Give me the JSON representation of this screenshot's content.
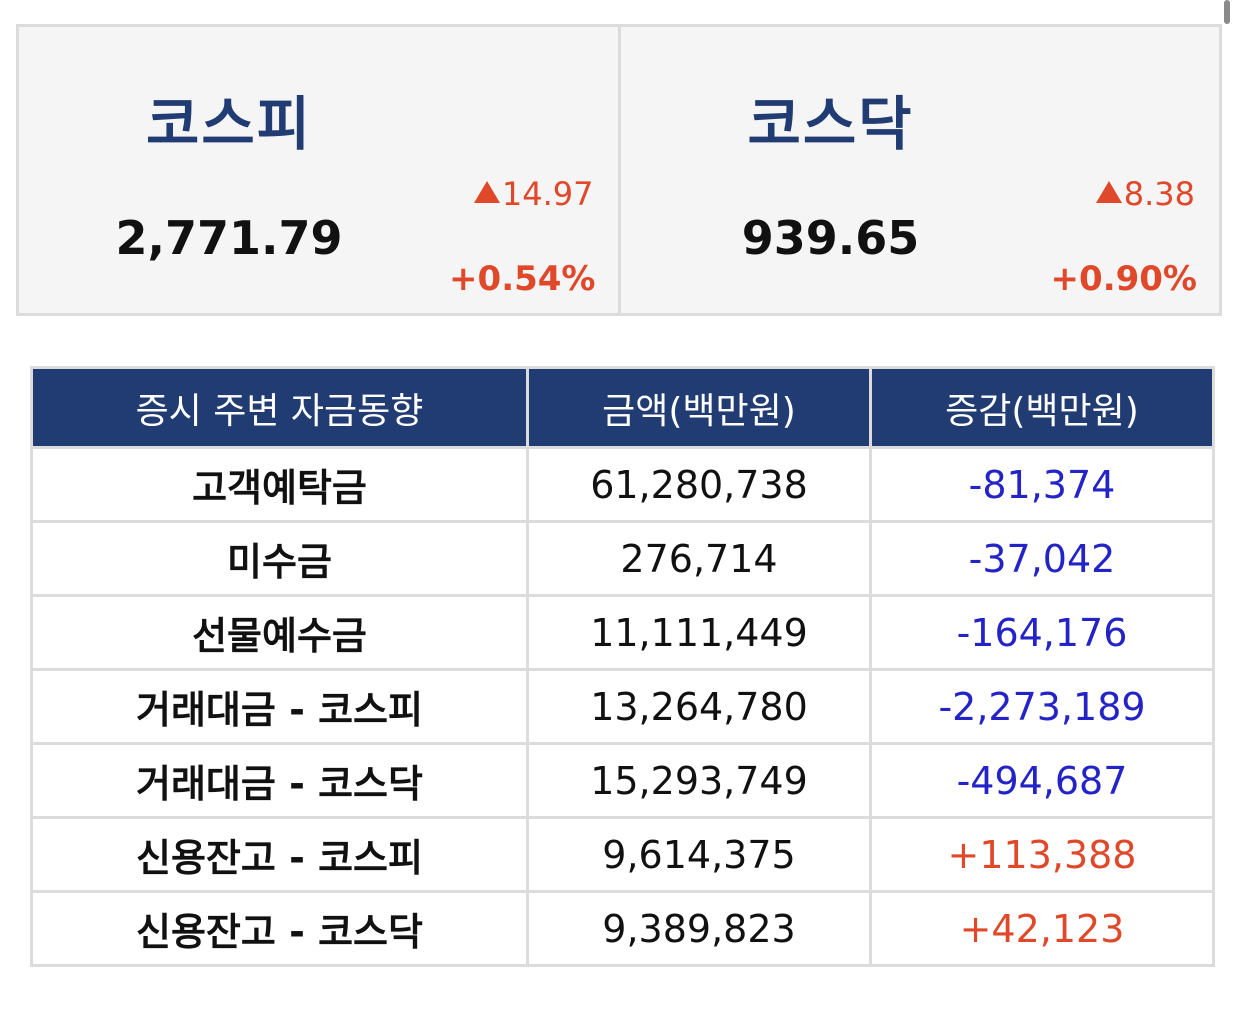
{
  "indices": [
    {
      "name": "코스피",
      "value": "2,771.79",
      "change": "14.97",
      "rate": "+0.54%"
    },
    {
      "name": "코스닥",
      "value": "939.65",
      "change": "8.38",
      "rate": "+0.90%"
    }
  ],
  "table": {
    "headers": [
      "증시 주변 자금동향",
      "금액(백만원)",
      "증감(백만원)"
    ],
    "rows": [
      {
        "label": "고객예탁금",
        "amount": "61,280,738",
        "delta": "-81,374",
        "dir": "neg"
      },
      {
        "label": "미수금",
        "amount": "276,714",
        "delta": "-37,042",
        "dir": "neg"
      },
      {
        "label": "선물예수금",
        "amount": "11,111,449",
        "delta": "-164,176",
        "dir": "neg"
      },
      {
        "label": "거래대금 - 코스피",
        "amount": "13,264,780",
        "delta": "-2,273,189",
        "dir": "neg"
      },
      {
        "label": "거래대금 - 코스닥",
        "amount": "15,293,749",
        "delta": "-494,687",
        "dir": "neg"
      },
      {
        "label": "신용잔고 - 코스피",
        "amount": "9,614,375",
        "delta": "+113,388",
        "dir": "pos"
      },
      {
        "label": "신용잔고 - 코스닥",
        "amount": "9,389,823",
        "delta": "+42,123",
        "dir": "pos"
      }
    ]
  },
  "colors": {
    "navy": "#213b73",
    "up": "#e0482a",
    "down": "#2323c8",
    "border": "#dcdcdc",
    "panel": "#f5f5f5"
  }
}
